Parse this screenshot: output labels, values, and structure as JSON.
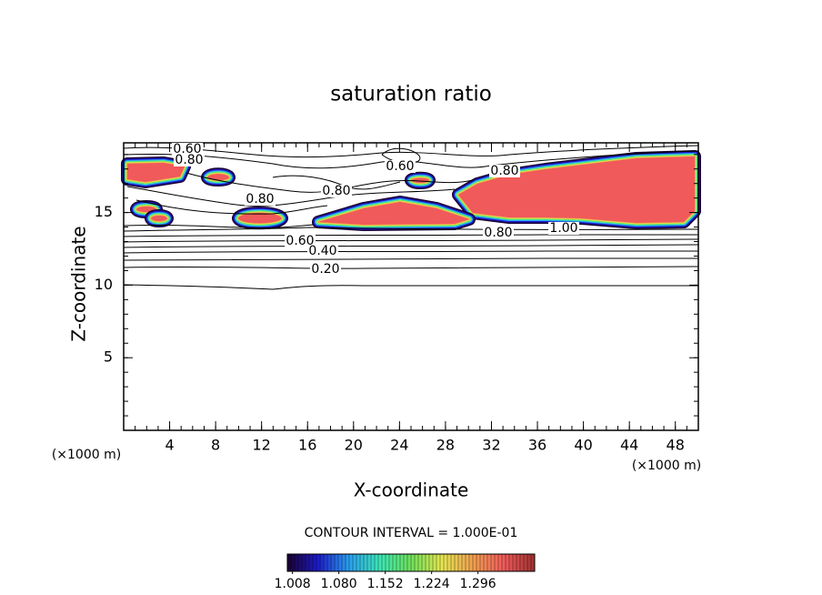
{
  "chart_data": {
    "type": "contour",
    "title": "saturation ratio",
    "x_label": "X-coordinate",
    "y_label": "Z-coordinate",
    "x_unit": "(×1000 m)",
    "xlim": [
      0,
      50
    ],
    "ylim": [
      0,
      19.8
    ],
    "xticks": [
      4,
      8,
      12,
      16,
      20,
      24,
      28,
      32,
      36,
      40,
      44,
      48
    ],
    "yticks": [
      5,
      10,
      15
    ],
    "x_minor_step": 1,
    "y_minor_step": 1,
    "contour_labels": [
      "0.60",
      "0.80",
      "0.60",
      "0.80",
      "0.80",
      "0.80",
      "0.60",
      "0.40",
      "0.20",
      "0.80",
      "1.00"
    ],
    "contour_interval": "CONTOUR INTERVAL = 1.000E-01",
    "colormap": [
      "#1a0030",
      "#1c1cc8",
      "#2aa0f0",
      "#3ce6b4",
      "#6ee05a",
      "#e6e650",
      "#f0a050",
      "#f05a5a",
      "#a03030"
    ],
    "clim": [
      1.0,
      1.384
    ],
    "cticks": [
      {
        "value": 1.008,
        "label": "1.008"
      },
      {
        "value": 1.08,
        "label": "1.080"
      },
      {
        "value": 1.152,
        "label": "1.152"
      },
      {
        "value": 1.224,
        "label": "1.224"
      },
      {
        "value": 1.296,
        "label": "1.296"
      }
    ]
  }
}
